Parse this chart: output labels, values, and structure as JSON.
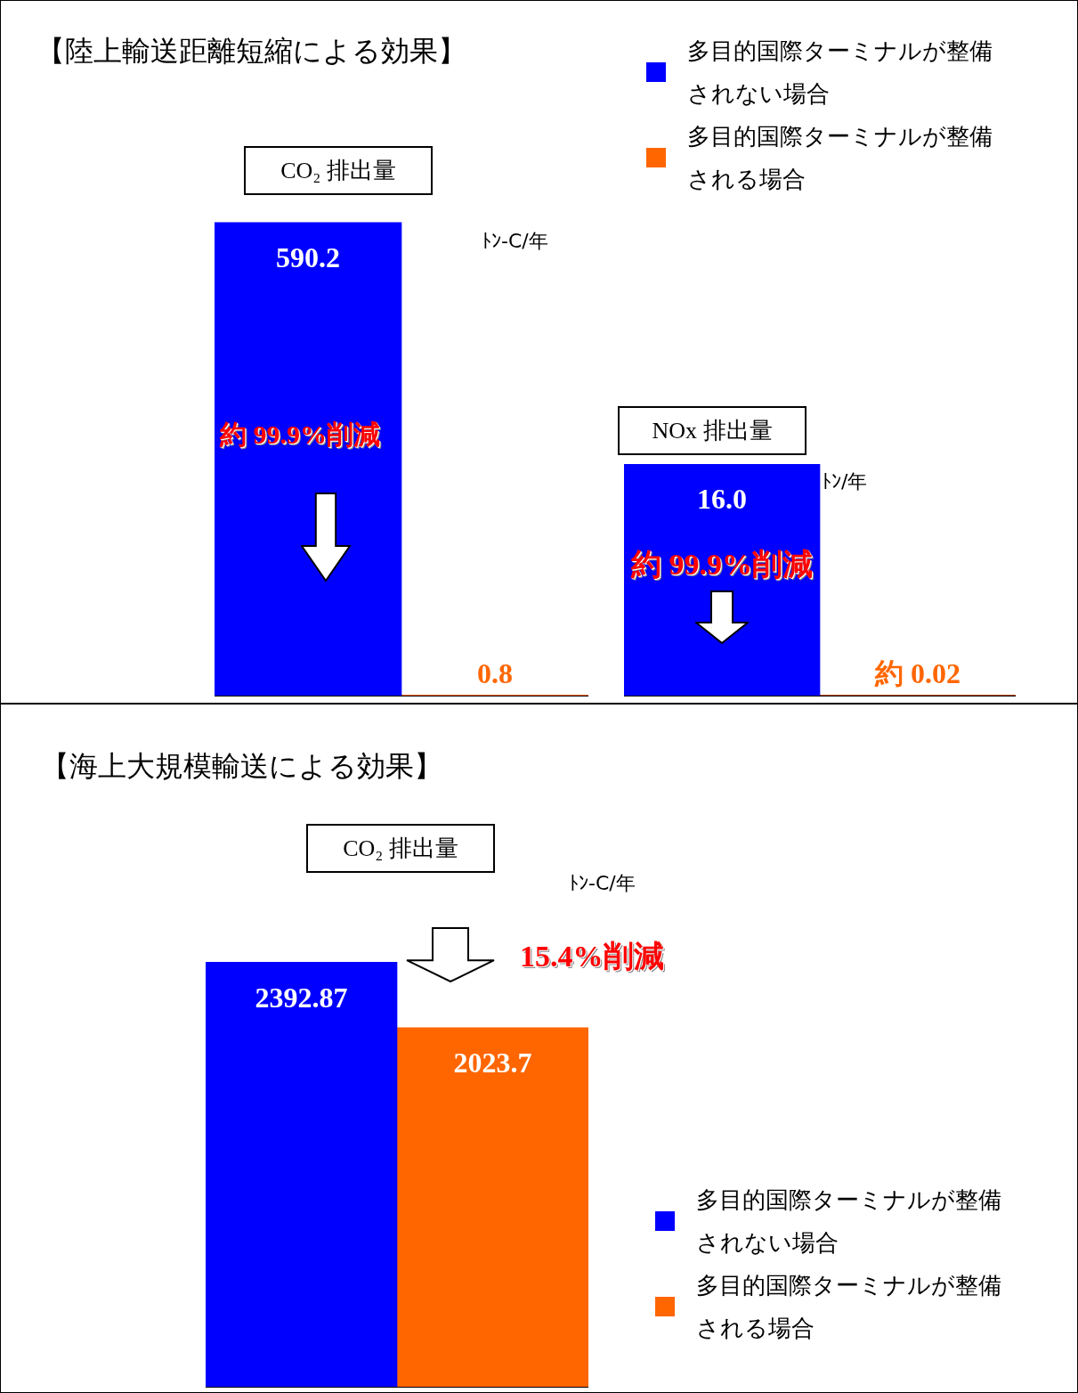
{
  "chart_data": [
    {
      "type": "bar",
      "title": "【陸上輸送距離短縮による効果】",
      "subtitle": "CO₂ 排出量",
      "ylabel": "ﾄﾝ-C/年",
      "categories": [
        null
      ],
      "legend": "top right",
      "annotations": [
        "約 99.9%削減"
      ],
      "series": [
        {
          "name": "多目的国際ターミナルが整備されない場合",
          "color": "#0000ff",
          "values": [
            590.2
          ],
          "value_labels": [
            "590.2"
          ]
        },
        {
          "name": "多目的国際ターミナルが整備される場合",
          "color": "#ff6600",
          "values": [
            0.8
          ],
          "value_labels": [
            "0.8"
          ]
        }
      ]
    },
    {
      "type": "bar",
      "title": "NOx 排出量",
      "ylabel": "ﾄﾝ/年",
      "categories": [
        null
      ],
      "annotations": [
        "約 99.9%削減"
      ],
      "series": [
        {
          "color": "#0000ff",
          "values": [
            16.0
          ],
          "value_labels": [
            "16.0"
          ]
        },
        {
          "color": "#ff6600",
          "values": [
            0.02
          ],
          "value_labels": [
            "約 0.02"
          ]
        }
      ]
    },
    {
      "type": "bar",
      "title": "【海上大規模輸送による効果】",
      "subtitle": "CO₂ 排出量",
      "ylabel": "ﾄﾝ-C/年",
      "categories": [
        null
      ],
      "legend": "bottom right",
      "annotations": [
        "15.4%削減"
      ],
      "series": [
        {
          "name": "多目的国際ターミナルが整備されない場合",
          "color": "#0000ff",
          "values": [
            2392.87
          ],
          "value_labels": [
            "2392.87"
          ]
        },
        {
          "name": "多目的国際ターミナルが整備される場合",
          "color": "#ff6600",
          "values": [
            2023.7
          ],
          "value_labels": [
            "2023.7"
          ]
        }
      ]
    }
  ]
}
